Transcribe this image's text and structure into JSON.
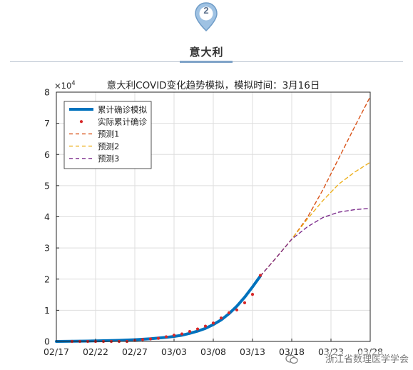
{
  "section": {
    "badge_number": "2",
    "title": "意大利"
  },
  "watermark": "浙江省数理医学学会",
  "chart_data": {
    "type": "line",
    "title": "意大利COVID变化趋势模拟，模拟时间：3月16日",
    "xlabel": "",
    "ylabel": "",
    "y_multiplier_label": "×10",
    "y_multiplier_exp": "4",
    "xlim": [
      0,
      40
    ],
    "ylim": [
      0,
      8
    ],
    "x_ticks": [
      {
        "x": 0,
        "label": "02/17"
      },
      {
        "x": 5,
        "label": "02/22"
      },
      {
        "x": 10,
        "label": "02/27"
      },
      {
        "x": 15,
        "label": "03/03"
      },
      {
        "x": 20,
        "label": "03/08"
      },
      {
        "x": 25,
        "label": "03/13"
      },
      {
        "x": 30,
        "label": "03/18"
      },
      {
        "x": 35,
        "label": "03/23"
      },
      {
        "x": 40,
        "label": "03/28"
      }
    ],
    "y_ticks": [
      0,
      1,
      2,
      3,
      4,
      5,
      6,
      7,
      8
    ],
    "grid": true,
    "legend_position": "top-left",
    "series": [
      {
        "name": "累计确诊模拟",
        "kind": "line",
        "color": "#0072BD",
        "x": [
          0,
          2,
          4,
          6,
          8,
          10,
          12,
          14,
          15,
          16,
          17,
          18,
          19,
          20,
          21,
          22,
          23,
          24,
          25,
          26
        ],
        "y": [
          0.0,
          0.005,
          0.012,
          0.022,
          0.035,
          0.055,
          0.085,
          0.13,
          0.16,
          0.2,
          0.26,
          0.33,
          0.42,
          0.54,
          0.69,
          0.89,
          1.13,
          1.42,
          1.75,
          2.1
        ]
      },
      {
        "name": "实际累计确诊",
        "kind": "scatter",
        "color": "#D62728",
        "x": [
          2,
          3,
          4,
          5,
          6,
          7,
          8,
          9,
          10,
          11,
          12,
          13,
          14,
          15,
          16,
          17,
          18,
          19,
          20,
          21,
          22,
          23,
          24,
          25,
          26
        ],
        "y": [
          0.0,
          0.0,
          0.0,
          0.0,
          0.0,
          0.0,
          0.0,
          0.0,
          0.03,
          0.06,
          0.08,
          0.1,
          0.15,
          0.2,
          0.24,
          0.32,
          0.4,
          0.49,
          0.59,
          0.75,
          0.92,
          1.01,
          1.24,
          1.51,
          2.12
        ]
      },
      {
        "name": "预测1",
        "kind": "dashed",
        "color": "#D95319",
        "x": [
          26,
          28,
          30,
          32,
          34,
          36,
          38,
          40
        ],
        "y": [
          2.1,
          2.68,
          3.28,
          3.98,
          4.88,
          5.88,
          6.88,
          7.85
        ]
      },
      {
        "name": "预测2",
        "kind": "dashed",
        "color": "#EDB120",
        "x": [
          26,
          28,
          30,
          32,
          34,
          36,
          38,
          40
        ],
        "y": [
          2.1,
          2.68,
          3.28,
          3.93,
          4.53,
          5.05,
          5.43,
          5.75
        ]
      },
      {
        "name": "预测3",
        "kind": "dashed",
        "color": "#7E2F8E",
        "x": [
          26,
          28,
          30,
          32,
          34,
          36,
          38,
          40
        ],
        "y": [
          2.1,
          2.68,
          3.28,
          3.68,
          3.98,
          4.15,
          4.23,
          4.27
        ]
      }
    ]
  }
}
